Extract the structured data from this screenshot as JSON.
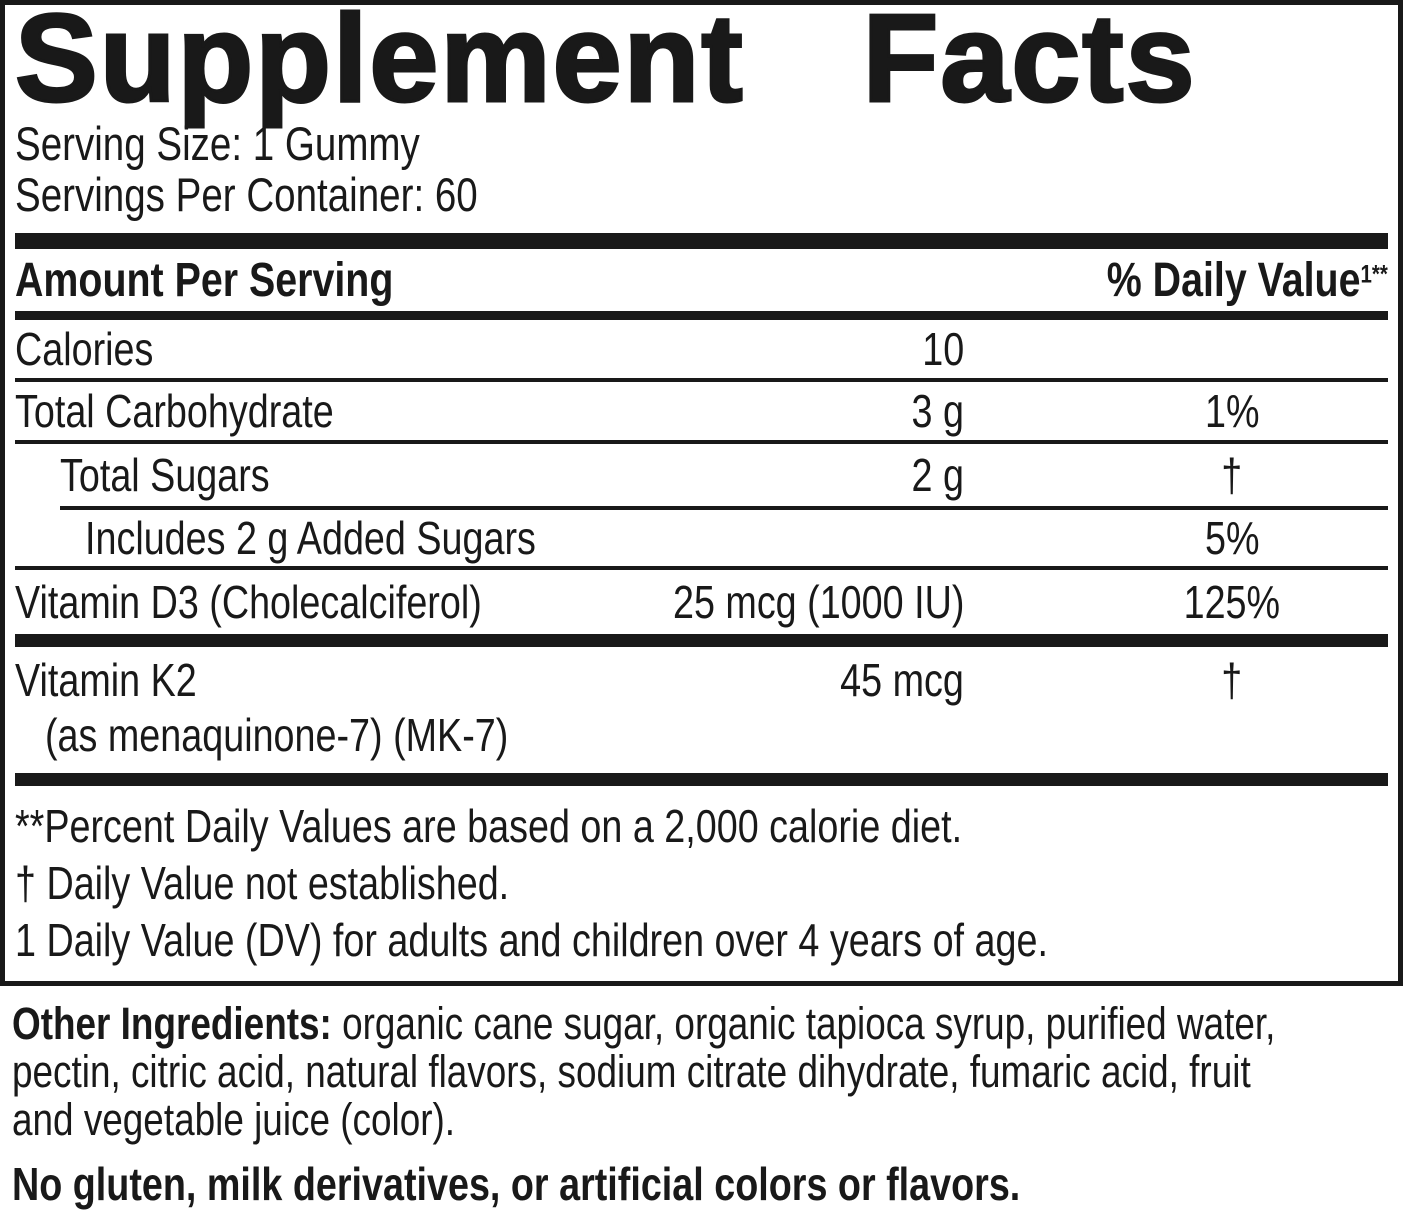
{
  "panel": {
    "title_words": {
      "first": "Supplement",
      "second": "Facts"
    },
    "serving_size": "Serving Size: 1 Gummy",
    "servings_per_container": "Servings Per Container: 60",
    "header": {
      "amount_label": "Amount Per Serving",
      "dv_label": "% Daily Value",
      "dv_superscript": "1**"
    },
    "rows": [
      {
        "name": "Calories",
        "amount": "10",
        "dv": ""
      },
      {
        "name": "Total Carbohydrate",
        "amount": "3 g",
        "dv": "1%"
      },
      {
        "name": "Total Sugars",
        "amount": "2 g",
        "dv": "†"
      },
      {
        "name": "Includes 2 g Added Sugars",
        "amount": "",
        "dv": "5%"
      },
      {
        "name": "Vitamin D3 (Cholecalciferol)",
        "amount": "25 mcg (1000 IU)",
        "dv": "125%"
      },
      {
        "name": "Vitamin K2",
        "name_line2": "(as menaquinone-7) (MK-7)",
        "amount": "45 mcg",
        "dv": "†"
      }
    ],
    "footnotes": [
      "**Percent Daily Values are based on a 2,000 calorie diet.",
      "† Daily Value not established.",
      "1 Daily Value (DV) for adults and children over 4 years of age."
    ]
  },
  "other_ingredients": {
    "label": "Other Ingredients:",
    "lines": [
      "organic cane sugar, organic tapioca syrup, purified water,",
      "pectin, citric acid, natural flavors, sodium citrate dihydrate, fumaric acid, fruit",
      "and vegetable juice (color)."
    ]
  },
  "allergen_statement": "No gluten, milk derivatives, or artificial colors or flavors.",
  "colors": {
    "text": "#191919",
    "background": "#ffffff"
  }
}
